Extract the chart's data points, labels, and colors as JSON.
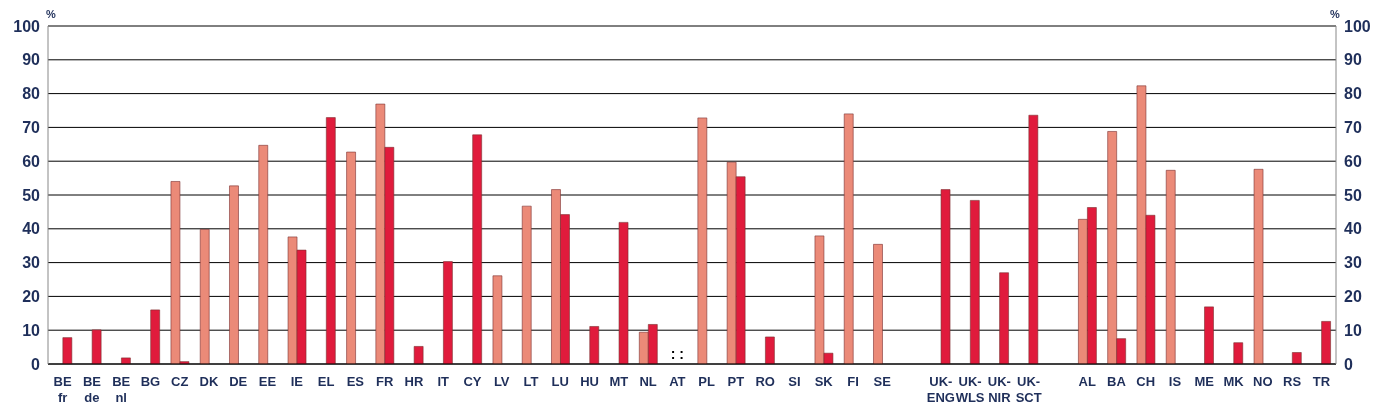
{
  "chart_data": {
    "type": "bar",
    "ylabel": "%",
    "y2label": "%",
    "categories": [
      "BE\nfr",
      "BE\nde",
      "BE\nnl",
      "BG",
      "CZ",
      "DK",
      "DE",
      "EE",
      "IE",
      "EL",
      "ES",
      "FR",
      "HR",
      "IT",
      "CY",
      "LV",
      "LT",
      "LU",
      "HU",
      "MT",
      "NL",
      "AT",
      "PL",
      "PT",
      "RO",
      "SI",
      "SK",
      "FI",
      "SE",
      null,
      "UK-\nENG",
      "UK-\nWLS",
      "UK-\nNIR",
      "UK-\nSCT",
      null,
      "AL",
      "BA",
      "CH",
      "IS",
      "ME",
      "MK",
      "NO",
      "RS",
      "TR"
    ],
    "series": [
      {
        "color": "#eb8a78",
        "values": [
          null,
          null,
          null,
          null,
          54,
          39.8,
          52.7,
          64.7,
          37.6,
          null,
          62.7,
          76.9,
          null,
          null,
          null,
          26.1,
          46.7,
          51.6,
          null,
          null,
          9.4,
          null,
          72.8,
          59.7,
          null,
          null,
          37.9,
          74,
          35.4,
          null,
          null,
          null,
          null,
          null,
          null,
          42.8,
          68.8,
          82.3,
          57.3,
          null,
          null,
          57.6,
          null,
          null
        ]
      },
      {
        "color": "#e01b3c",
        "values": [
          7.8,
          10.1,
          1.8,
          16,
          0.7,
          null,
          null,
          null,
          33.7,
          72.9,
          null,
          64.1,
          5.2,
          30.3,
          67.8,
          null,
          null,
          44.2,
          11.1,
          41.9,
          11.7,
          null,
          null,
          55.4,
          8,
          null,
          3.2,
          null,
          null,
          null,
          51.6,
          48.4,
          27,
          73.6,
          null,
          46.3,
          7.5,
          44,
          null,
          16.9,
          6.3,
          null,
          3.4,
          12.6
        ]
      }
    ],
    "annotations": [
      ": :"
    ],
    "ylim": [
      0,
      100
    ],
    "yticks": [
      0,
      10,
      20,
      30,
      40,
      50,
      60,
      70,
      80,
      90,
      100
    ],
    "y2lim": [
      0,
      100
    ],
    "y2ticks": [
      0,
      10,
      20,
      30,
      40,
      50,
      60,
      70,
      80,
      90,
      100
    ],
    "grid": "y",
    "legend": false
  }
}
